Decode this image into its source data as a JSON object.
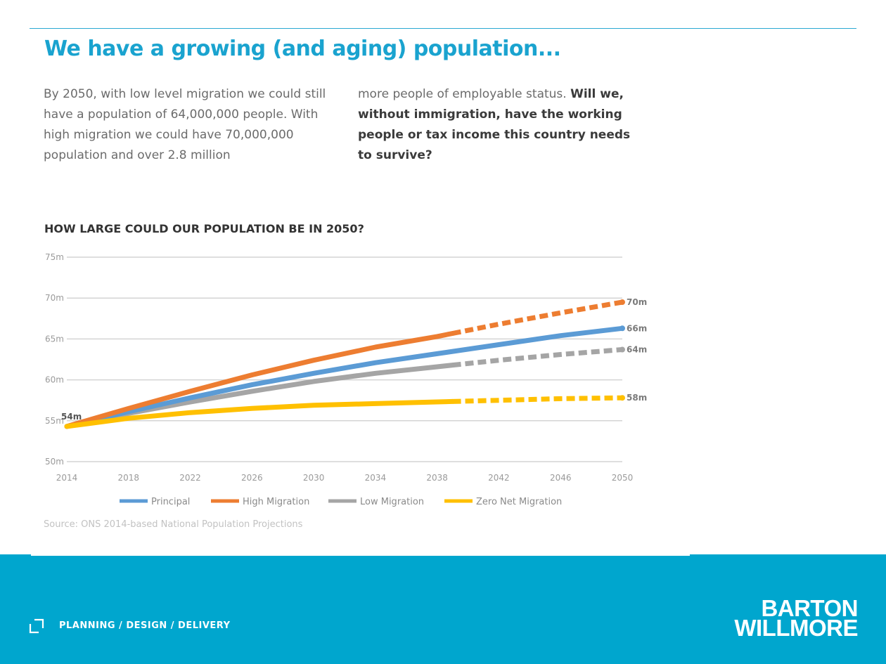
{
  "slide": {
    "title": "We have a growing (and aging) population...",
    "intro_left": "By 2050, with low level migration we could still have a population of 64,000,000 people. With high migration we could have 70,000,000 population and over 2.8 million",
    "intro_right_plain": "more people of employable status.",
    "intro_right_bold": "Will we, without immigration, have the working people or tax income this country needs to survive?",
    "chart_heading": "HOW LARGE COULD OUR POPULATION BE IN 2050?",
    "source": "Source: ONS 2014-based National Population Projections"
  },
  "footer": {
    "tagline": "PLANNING / DESIGN / DELIVERY",
    "logo_line1": "BARTON",
    "logo_line2": "WILLMORE"
  },
  "colors": {
    "accent": "#1aa3cf",
    "footer": "#00a6ce"
  },
  "chart_data": {
    "type": "line",
    "x": [
      2014,
      2018,
      2022,
      2026,
      2030,
      2034,
      2038,
      2042,
      2046,
      2050
    ],
    "xlim": [
      2014,
      2050
    ],
    "ylim": [
      50,
      75
    ],
    "y_ticks": [
      50,
      55,
      60,
      65,
      70,
      75
    ],
    "y_tick_labels": [
      "50m",
      "55m",
      "60m",
      "65m",
      "70m",
      "75m"
    ],
    "grid": true,
    "legend_position": "bottom",
    "projected_from": 2039,
    "start_label": "54m",
    "series": [
      {
        "name": "Principal",
        "color": "#5b9bd5",
        "end_label": "66m",
        "dashed_from": null,
        "values": [
          54.3,
          56.1,
          57.8,
          59.4,
          60.8,
          62.1,
          63.2,
          64.3,
          65.4,
          66.3
        ]
      },
      {
        "name": "High Migration",
        "color": "#ed7d31",
        "end_label": "70m",
        "dashed_from": 2039,
        "values": [
          54.3,
          56.5,
          58.6,
          60.6,
          62.4,
          64.0,
          65.3,
          66.8,
          68.2,
          69.5
        ]
      },
      {
        "name": "Low Migration",
        "color": "#a5a5a5",
        "end_label": "64m",
        "dashed_from": 2039,
        "values": [
          54.3,
          55.9,
          57.3,
          58.6,
          59.8,
          60.8,
          61.6,
          62.4,
          63.1,
          63.7
        ]
      },
      {
        "name": "Zero Net Migration",
        "color": "#ffc000",
        "end_label": "58m",
        "dashed_from": 2039,
        "values": [
          54.3,
          55.3,
          56.0,
          56.5,
          56.9,
          57.1,
          57.3,
          57.5,
          57.7,
          57.8
        ]
      }
    ]
  }
}
